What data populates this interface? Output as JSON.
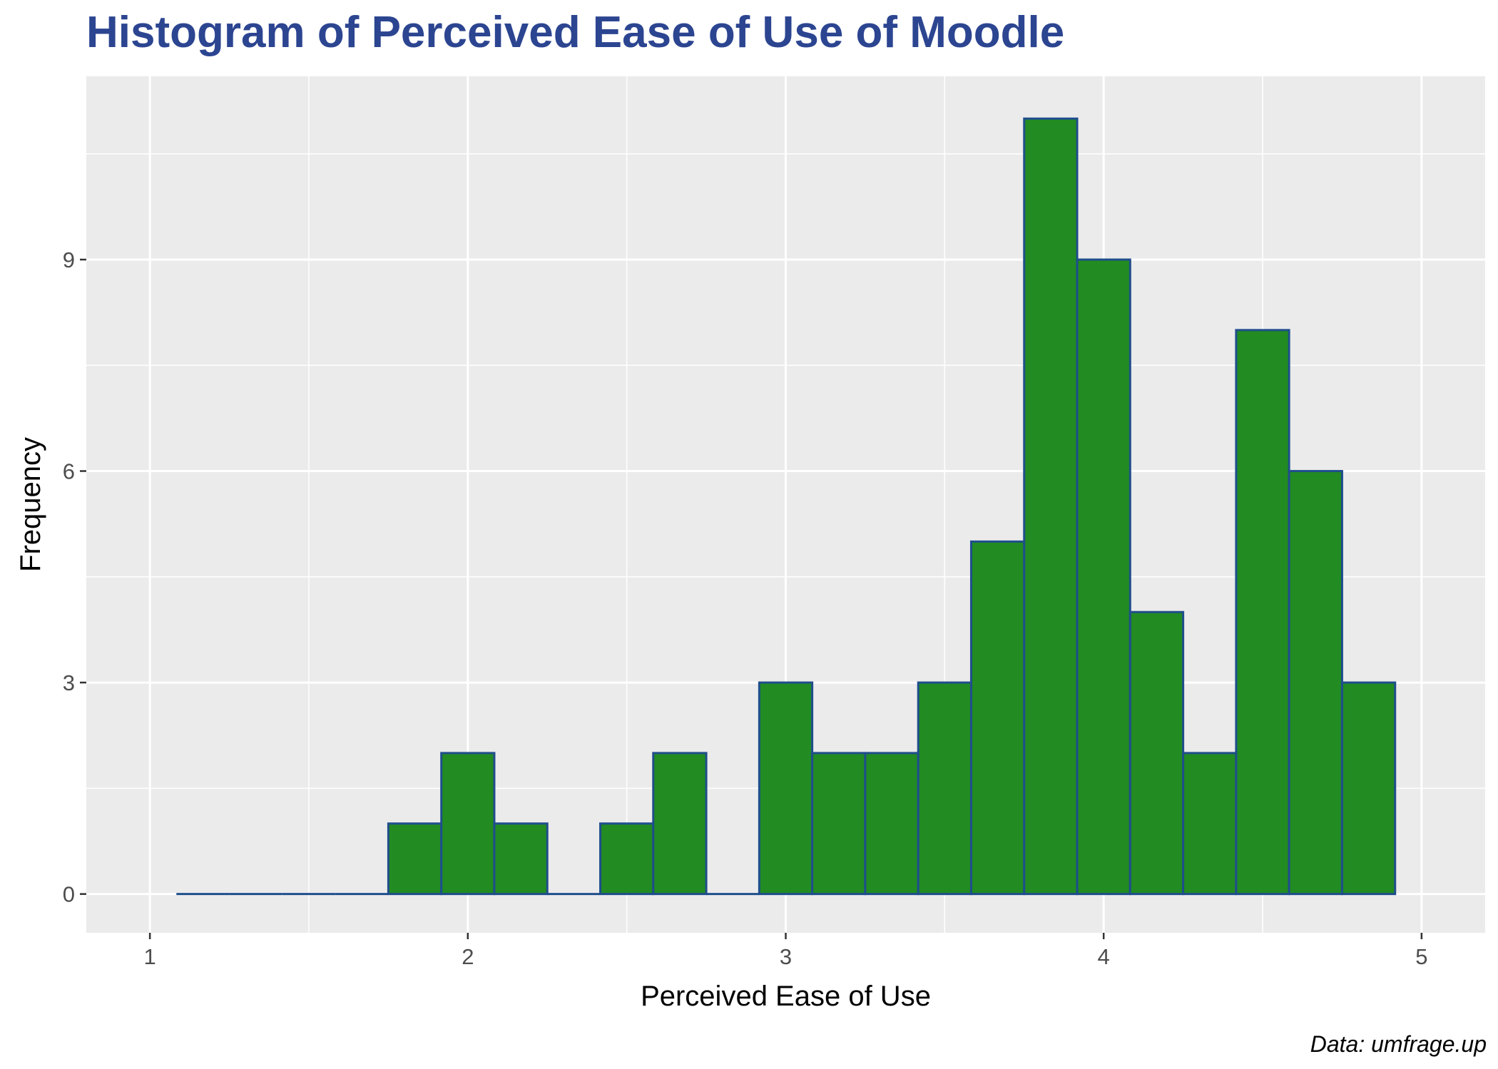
{
  "chart_data": {
    "type": "bar",
    "title": "Histogram of Perceived Ease of Use of Moodle",
    "xlabel": "Perceived Ease of Use",
    "ylabel": "Frequency",
    "caption": "Data: umfrage.up",
    "xlim": [
      0.8,
      5.2
    ],
    "ylim": [
      -0.55,
      11.6
    ],
    "x_ticks": [
      1,
      2,
      3,
      4,
      5
    ],
    "x_tick_labels": [
      "1",
      "2",
      "3",
      "4",
      "5"
    ],
    "y_ticks": [
      0,
      3,
      6,
      9
    ],
    "y_tick_labels": [
      "0",
      "3",
      "6",
      "9"
    ],
    "bin_width": 0.1667,
    "bins": [
      {
        "x0": 1.0833,
        "x1": 1.25,
        "count": 0
      },
      {
        "x0": 1.25,
        "x1": 1.4167,
        "count": 0
      },
      {
        "x0": 1.4167,
        "x1": 1.5833,
        "count": 0
      },
      {
        "x0": 1.5833,
        "x1": 1.75,
        "count": 0
      },
      {
        "x0": 1.75,
        "x1": 1.9167,
        "count": 1
      },
      {
        "x0": 1.9167,
        "x1": 2.0833,
        "count": 2
      },
      {
        "x0": 2.0833,
        "x1": 2.25,
        "count": 1
      },
      {
        "x0": 2.25,
        "x1": 2.4167,
        "count": 0
      },
      {
        "x0": 2.4167,
        "x1": 2.5833,
        "count": 1
      },
      {
        "x0": 2.5833,
        "x1": 2.75,
        "count": 2
      },
      {
        "x0": 2.75,
        "x1": 2.9167,
        "count": 0
      },
      {
        "x0": 2.9167,
        "x1": 3.0833,
        "count": 3
      },
      {
        "x0": 3.0833,
        "x1": 3.25,
        "count": 2
      },
      {
        "x0": 3.25,
        "x1": 3.4167,
        "count": 2
      },
      {
        "x0": 3.4167,
        "x1": 3.5833,
        "count": 3
      },
      {
        "x0": 3.5833,
        "x1": 3.75,
        "count": 5
      },
      {
        "x0": 3.75,
        "x1": 3.9167,
        "count": 11
      },
      {
        "x0": 3.9167,
        "x1": 4.0833,
        "count": 9
      },
      {
        "x0": 4.0833,
        "x1": 4.25,
        "count": 4
      },
      {
        "x0": 4.25,
        "x1": 4.4167,
        "count": 2
      },
      {
        "x0": 4.4167,
        "x1": 4.5833,
        "count": 8
      },
      {
        "x0": 4.5833,
        "x1": 4.75,
        "count": 6
      },
      {
        "x0": 4.75,
        "x1": 4.9167,
        "count": 3
      }
    ],
    "grid": true,
    "legend": "none",
    "colors": {
      "bar_fill": "#228B22",
      "bar_outline": "#1f4e8c",
      "panel_background": "#ebebeb",
      "gridline": "#ffffff",
      "title": "#2c4591"
    }
  }
}
